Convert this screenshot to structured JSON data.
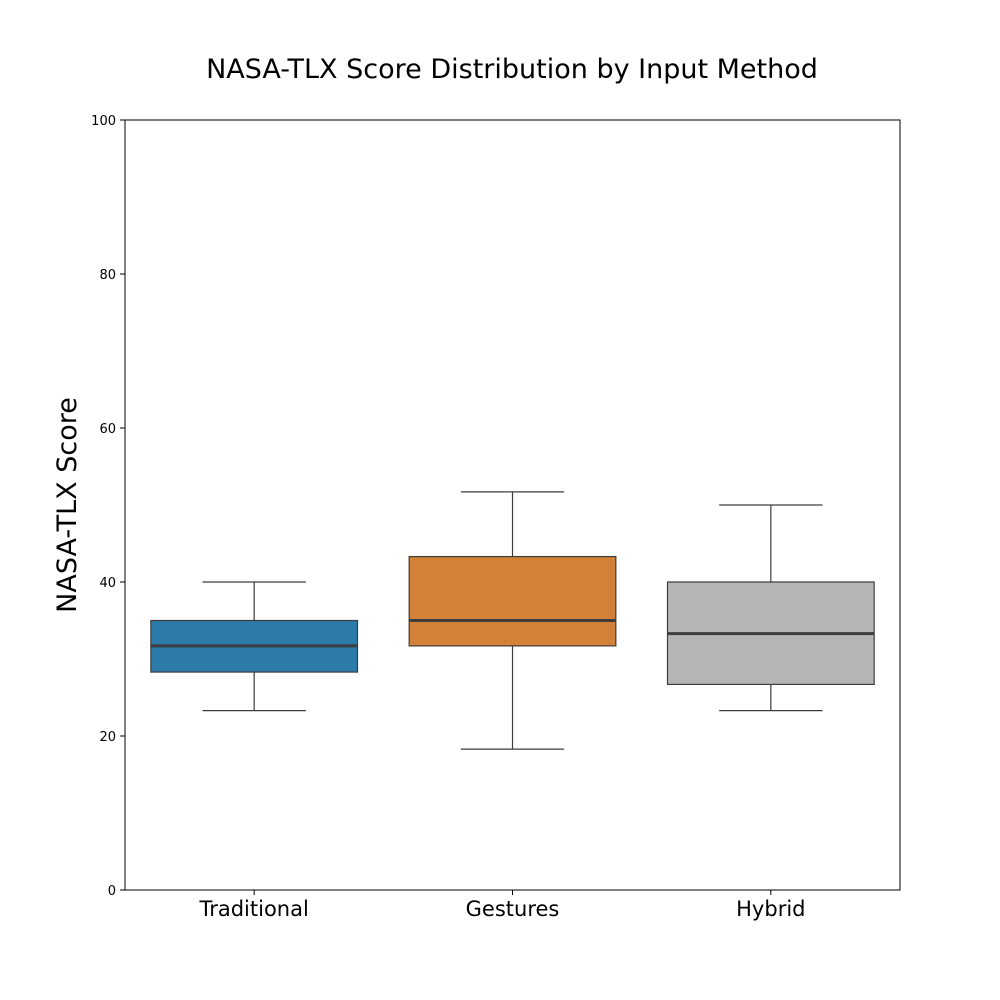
{
  "chart_data": {
    "type": "box",
    "title": "NASA-TLX Score Distribution by Input Method",
    "xlabel": "",
    "ylabel": "NASA-TLX Score",
    "ylim": [
      0,
      100
    ],
    "yticks": [
      0,
      20,
      40,
      60,
      80,
      100
    ],
    "grid": false,
    "categories": [
      "Traditional",
      "Gestures",
      "Hybrid"
    ],
    "boxes": [
      {
        "category": "Traditional",
        "whisker_low": 23.3,
        "q1": 28.3,
        "median": 31.7,
        "q3": 35.0,
        "whisker_high": 40.0,
        "color": "#2c7bab"
      },
      {
        "category": "Gestures",
        "whisker_low": 18.3,
        "q1": 31.7,
        "median": 35.0,
        "q3": 43.3,
        "whisker_high": 51.7,
        "color": "#d38138"
      },
      {
        "category": "Hybrid",
        "whisker_low": 23.3,
        "q1": 26.7,
        "median": 33.3,
        "q3": 40.0,
        "whisker_high": 50.0,
        "color": "#b6b6b6"
      }
    ]
  }
}
